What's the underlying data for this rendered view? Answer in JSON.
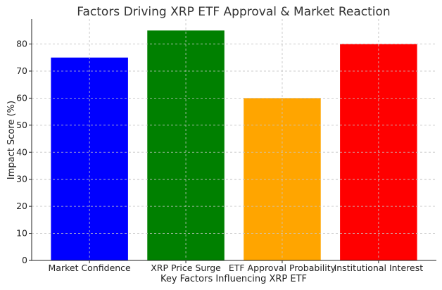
{
  "chart_data": {
    "type": "bar",
    "title": "Factors Driving XRP ETF Approval & Market Reaction",
    "xlabel": "Key Factors Influencing XRP ETF",
    "ylabel": "Impact Score (%)",
    "categories": [
      "Market Confidence",
      "XRP Price Surge",
      "ETF Approval Probability",
      "Institutional Interest"
    ],
    "values": [
      75,
      85,
      60,
      80
    ],
    "colors": [
      "#0000ff",
      "#008000",
      "#ffa500",
      "#ff0000"
    ],
    "ylim": [
      0,
      89.25
    ],
    "yticks": [
      0,
      10,
      20,
      30,
      40,
      50,
      60,
      70,
      80
    ],
    "grid": true,
    "legend": "none"
  }
}
